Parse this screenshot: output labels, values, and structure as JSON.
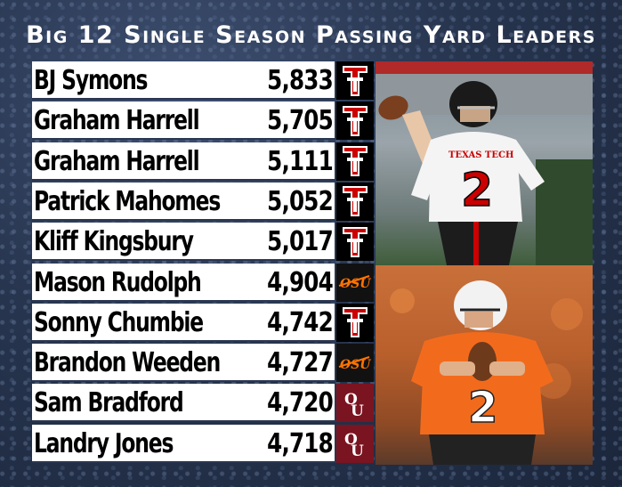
{
  "title": "Big 12 Single Season Passing Yard Leaders",
  "colors": {
    "background": "#23304a",
    "row": "#ffffff",
    "texas_tech": "#cc0000",
    "oklahoma_state": "#ff7300",
    "oklahoma": "#841617"
  },
  "leaders": [
    {
      "name": "BJ Symons",
      "yards": "5,833",
      "team_logo": "texas-tech-logo"
    },
    {
      "name": "Graham Harrell",
      "yards": "5,705",
      "team_logo": "texas-tech-logo"
    },
    {
      "name": "Graham Harrell",
      "yards": "5,111",
      "team_logo": "texas-tech-logo"
    },
    {
      "name": "Patrick Mahomes",
      "yards": "5,052",
      "team_logo": "texas-tech-logo"
    },
    {
      "name": "Kliff Kingsbury",
      "yards": "5,017",
      "team_logo": "texas-tech-logo"
    },
    {
      "name": "Mason Rudolph",
      "yards": "4,904",
      "team_logo": "oklahoma-state-logo"
    },
    {
      "name": "Sonny Chumbie",
      "yards": "4,742",
      "team_logo": "texas-tech-logo"
    },
    {
      "name": "Brandon Weeden",
      "yards": "4,727",
      "team_logo": "oklahoma-state-logo"
    },
    {
      "name": "Sam Bradford",
      "yards": "4,720",
      "team_logo": "oklahoma-logo"
    },
    {
      "name": "Landry Jones",
      "yards": "4,718",
      "team_logo": "oklahoma-logo"
    }
  ],
  "photos": [
    {
      "jersey_text": "TEXAS TECH",
      "jersey_number": "2"
    },
    {
      "jersey_number": "2"
    }
  ]
}
